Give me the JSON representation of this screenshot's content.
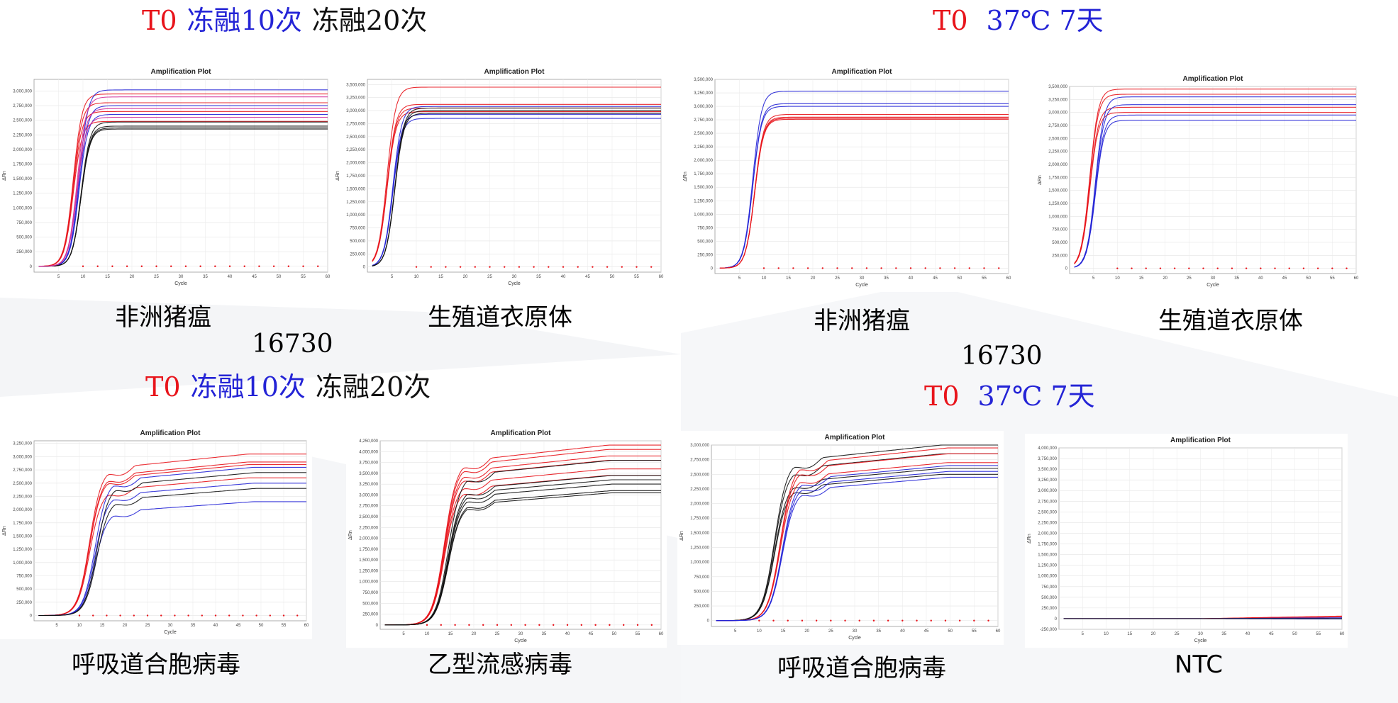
{
  "colors": {
    "t0": "#e8141b",
    "group2": "#2424d6",
    "group3": "#111111",
    "pink": "#d12f9a"
  },
  "headers": {
    "left_top": [
      {
        "text": "T0",
        "color": "#e8141b"
      },
      {
        "text": "冻融10次",
        "color": "#2424d6"
      },
      {
        "text": "冻融20次",
        "color": "#111111"
      }
    ],
    "right_top": [
      {
        "text": "T0",
        "color": "#e8141b"
      },
      {
        "text": "37℃ 7天",
        "color": "#2424d6"
      }
    ],
    "left_mid": [
      {
        "text": "T0",
        "color": "#e8141b"
      },
      {
        "text": "冻融10次",
        "color": "#2424d6"
      },
      {
        "text": "冻融20次",
        "color": "#111111"
      }
    ],
    "right_mid": [
      {
        "text": "T0",
        "color": "#e8141b"
      },
      {
        "text": "37℃ 7天",
        "color": "#2424d6"
      }
    ]
  },
  "numbers": {
    "left": "16730",
    "right": "16730"
  },
  "captions": [
    "非洲猪瘟",
    "生殖道衣原体",
    "非洲猪瘟",
    "生殖道衣原体",
    "呼吸道合胞病毒",
    "乙型流感病毒",
    "呼吸道合胞病毒",
    "NTC"
  ],
  "chart_data": [
    {
      "type": "line",
      "title": "Amplification Plot",
      "xlabel": "Cycle",
      "ylabel": "ΔRn",
      "xlim": [
        0,
        60
      ],
      "ylim": [
        -100000,
        3200000
      ],
      "yticks": [
        0,
        250000,
        500000,
        750000,
        1000000,
        1250000,
        1500000,
        1750000,
        2000000,
        2250000,
        2500000,
        2750000,
        3000000
      ],
      "xticks": [
        5,
        10,
        15,
        20,
        25,
        30,
        35,
        40,
        45,
        50,
        55,
        60
      ],
      "ct": 8.8,
      "plateaus": {
        "#e8141b": [
          2950000,
          2800000,
          2650000,
          2480000
        ],
        "#2424d6": [
          3020000,
          2750000,
          2600000
        ],
        "#111111": [
          2470000,
          2400000,
          2370000,
          2350000
        ],
        "#d12f9a": [
          2900000,
          2700000,
          2550000
        ]
      },
      "flat": true
    },
    {
      "type": "line",
      "title": "Amplification Plot",
      "xlabel": "Cycle",
      "ylabel": "ΔRn",
      "xlim": [
        0,
        60
      ],
      "ylim": [
        -100000,
        3600000
      ],
      "yticks": [
        0,
        250000,
        500000,
        750000,
        1000000,
        1250000,
        1500000,
        1750000,
        2000000,
        2250000,
        2500000,
        2750000,
        3000000,
        3250000,
        3500000
      ],
      "xticks": [
        5,
        10,
        15,
        20,
        25,
        30,
        35,
        40,
        45,
        50,
        55,
        60
      ],
      "ct": 4.8,
      "plateaus": {
        "#e8141b": [
          3450000,
          3120000,
          3050000,
          2980000
        ],
        "#2424d6": [
          3080000,
          2930000,
          2850000
        ],
        "#111111": [
          3050000,
          3000000,
          2950000
        ]
      },
      "flat": true
    },
    {
      "type": "line",
      "title": "Amplification Plot",
      "xlabel": "Cycle",
      "ylabel": "ΔRn",
      "xlim": [
        0,
        60
      ],
      "ylim": [
        -100000,
        3500000
      ],
      "yticks": [
        0,
        250000,
        500000,
        750000,
        1000000,
        1250000,
        1500000,
        1750000,
        2000000,
        2250000,
        2500000,
        2750000,
        3000000,
        3250000,
        3500000
      ],
      "xticks": [
        5,
        10,
        15,
        20,
        25,
        30,
        35,
        40,
        45,
        50,
        55,
        60
      ],
      "ct": 8.5,
      "plateaus": {
        "#2424d6": [
          3280000,
          3050000,
          3000000
        ],
        "#e8141b": [
          2850000,
          2800000,
          2780000,
          2760000
        ]
      },
      "flat": true
    },
    {
      "type": "line",
      "title": "Amplification Plot",
      "xlabel": "Cycle",
      "ylabel": "ΔRn",
      "xlim": [
        0,
        60
      ],
      "ylim": [
        -100000,
        3500000
      ],
      "yticks": [
        0,
        250000,
        500000,
        750000,
        1000000,
        1250000,
        1500000,
        1750000,
        2000000,
        2250000,
        2500000,
        2750000,
        3000000,
        3250000,
        3500000
      ],
      "xticks": [
        5,
        10,
        15,
        20,
        25,
        30,
        35,
        40,
        45,
        50,
        55,
        60
      ],
      "ct": 5.0,
      "plateaus": {
        "#e8141b": [
          3450000,
          3350000,
          3100000,
          3000000
        ],
        "#2424d6": [
          3300000,
          3150000,
          2950000,
          2850000
        ]
      },
      "flat": true
    },
    {
      "type": "line",
      "title": "Amplification Plot",
      "xlabel": "Cycle",
      "ylabel": "ΔRn",
      "xlim": [
        0,
        60
      ],
      "ylim": [
        -100000,
        3300000
      ],
      "yticks": [
        0,
        250000,
        500000,
        750000,
        1000000,
        1250000,
        1500000,
        1750000,
        2000000,
        2250000,
        2500000,
        2750000,
        3000000,
        3250000
      ],
      "xticks": [
        5,
        10,
        15,
        20,
        25,
        30,
        35,
        40,
        45,
        50,
        55,
        60
      ],
      "ct": 13.0,
      "plateaus": {
        "#e8141b": [
          3050000,
          2900000,
          2850000,
          2600000
        ],
        "#2424d6": [
          2800000,
          2500000,
          2150000
        ],
        "#111111": [
          2700000,
          2400000
        ]
      },
      "flat": false
    },
    {
      "type": "line",
      "title": "Amplification Plot",
      "xlabel": "Cycle",
      "ylabel": "ΔRn",
      "xlim": [
        0,
        60
      ],
      "ylim": [
        -100000,
        4250000
      ],
      "yticks": [
        0,
        250000,
        500000,
        750000,
        1000000,
        1250000,
        1500000,
        1750000,
        2000000,
        2250000,
        2500000,
        2750000,
        3000000,
        3250000,
        3500000,
        3750000,
        4000000,
        4250000
      ],
      "xticks": [
        5,
        10,
        15,
        20,
        25,
        30,
        35,
        40,
        45,
        50,
        55,
        60
      ],
      "ct": 14.5,
      "plateaus": {
        "#e8141b": [
          4150000,
          4050000,
          3900000,
          3800000,
          3600000,
          3450000
        ],
        "#111111": [
          3800000,
          3450000,
          3350000,
          3250000,
          3100000,
          3050000
        ]
      },
      "flat": false
    },
    {
      "type": "line",
      "title": "Amplification Plot",
      "xlabel": "Cycle",
      "ylabel": "ΔRn",
      "xlim": [
        0,
        60
      ],
      "ylim": [
        -100000,
        3000000
      ],
      "yticks": [
        0,
        250000,
        500000,
        750000,
        1000000,
        1250000,
        1500000,
        1750000,
        2000000,
        2250000,
        2500000,
        2750000,
        3000000
      ],
      "xticks": [
        5,
        10,
        15,
        20,
        25,
        30,
        35,
        40,
        45,
        50,
        55,
        60
      ],
      "ct": 14.0,
      "plateaus": {
        "#111111": [
          3000000,
          2850000,
          2600000,
          2500000
        ],
        "#e8141b": [
          2950000,
          2850000,
          2700000
        ],
        "#2424d6": [
          2650000,
          2550000,
          2450000
        ]
      },
      "flat": false
    },
    {
      "type": "line",
      "title": "Amplification Plot",
      "xlabel": "Cycle",
      "ylabel": "ΔRn",
      "xlim": [
        0,
        60
      ],
      "ylim": [
        -250000,
        4000000
      ],
      "yticks": [
        -250000,
        0,
        250000,
        500000,
        750000,
        1000000,
        1250000,
        1500000,
        1750000,
        2000000,
        2250000,
        2500000,
        2750000,
        3000000,
        3250000,
        3500000,
        3750000,
        4000000
      ],
      "xticks": [
        5,
        10,
        15,
        20,
        25,
        30,
        35,
        40,
        45,
        50,
        55,
        60
      ],
      "ct": null,
      "plateaus": {
        "#e8141b": [
          60000,
          40000
        ],
        "#2424d6": [
          20000,
          -10000
        ],
        "#111111": [
          0
        ]
      },
      "flat": true
    }
  ]
}
